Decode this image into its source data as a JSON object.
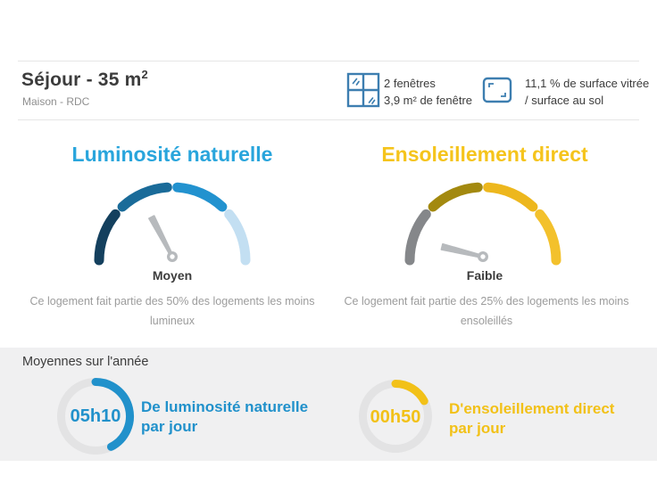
{
  "header": {
    "title": "Séjour - 35 m",
    "title_sup": "2",
    "subtitle": "Maison - RDC",
    "windows": {
      "line1": "2 fenêtres",
      "line2": "3,9 m² de fenêtre"
    },
    "glazing": {
      "line1": "11,1 % de surface vitrée",
      "line2": "/ surface au sol"
    },
    "icon_color": "#3D7EB0"
  },
  "gauges": [
    {
      "title": "Luminosité naturelle",
      "title_color": "#29A5DC",
      "label": "Moyen",
      "description": "Ce logement fait partie des 50% des logements les moins lumineux",
      "segments": [
        {
          "from": 180,
          "to": 141,
          "color": "#14405E"
        },
        {
          "from": 133,
          "to": 94,
          "color": "#1A6B99"
        },
        {
          "from": 86,
          "to": 47,
          "color": "#2292CF"
        },
        {
          "from": 39,
          "to": 0,
          "color": "#C3DFF2"
        }
      ],
      "needle_angle_deg": 117.6,
      "needle_length": 50,
      "needle_color": "#B7BABD"
    },
    {
      "title": "Ensoleillement direct",
      "title_color": "#F5C41C",
      "label": "Faible",
      "description": "Ce logement fait partie des 25% des logements les moins ensoleillés",
      "segments": [
        {
          "from": 180,
          "to": 141,
          "color": "#85878A"
        },
        {
          "from": 133,
          "to": 94,
          "color": "#A3890F"
        },
        {
          "from": 86,
          "to": 47,
          "color": "#EDB71D"
        },
        {
          "from": 39,
          "to": 0,
          "color": "#F3C12C"
        }
      ],
      "needle_angle_deg": 166.3,
      "needle_length": 47,
      "needle_color": "#B7BABD"
    }
  ],
  "averages": {
    "title": "Moyennes sur l'année",
    "rings": [
      {
        "value": "05h10",
        "caption": [
          "De luminosité naturelle",
          "par jour"
        ],
        "color": "#2191CB",
        "track_color": "#E3E3E4",
        "sweep_deg": 153,
        "radius": 38.5,
        "size": 96,
        "stroke": 9
      },
      {
        "value": "00h50",
        "caption": [
          "D'ensoleillement direct",
          "par jour"
        ],
        "color": "#F2C118",
        "track_color": "#E3E3E4",
        "sweep_deg": 62,
        "radius": 36.5,
        "size": 88,
        "stroke": 9
      }
    ]
  }
}
